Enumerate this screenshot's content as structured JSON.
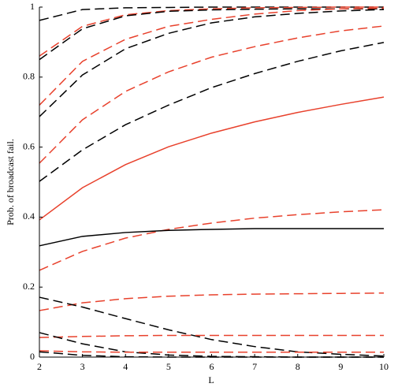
{
  "chart_data": {
    "type": "line",
    "x_label": "L",
    "y_label": "Prob. of broadcast fail.",
    "x": [
      2,
      3,
      4,
      5,
      6,
      7,
      8,
      9,
      10
    ],
    "xlim": [
      2,
      10
    ],
    "xticks": [
      2,
      3,
      4,
      5,
      6,
      7,
      8,
      9,
      10
    ],
    "ylim": [
      0,
      1
    ],
    "yticks": [
      0,
      0.2,
      0.4,
      0.6,
      0.8,
      1
    ],
    "series": [
      {
        "color": "#000000",
        "dashed": true,
        "values": [
          0.962,
          0.993,
          0.998,
          0.999,
          1,
          1,
          1,
          1,
          1
        ]
      },
      {
        "color": "#e8412c",
        "dashed": true,
        "values": [
          0.86,
          0.945,
          0.978,
          0.99,
          0.995,
          0.998,
          0.999,
          1,
          1
        ]
      },
      {
        "color": "#000000",
        "dashed": true,
        "values": [
          0.85,
          0.938,
          0.975,
          0.988,
          0.992,
          0.994,
          0.995,
          0.995,
          0.995
        ]
      },
      {
        "color": "#e8412c",
        "dashed": true,
        "values": [
          0.72,
          0.845,
          0.908,
          0.945,
          0.965,
          0.98,
          0.99,
          0.995,
          0.997
        ]
      },
      {
        "color": "#000000",
        "dashed": true,
        "values": [
          0.687,
          0.806,
          0.881,
          0.925,
          0.955,
          0.972,
          0.982,
          0.989,
          0.993
        ]
      },
      {
        "color": "#e8412c",
        "dashed": true,
        "values": [
          0.554,
          0.678,
          0.759,
          0.815,
          0.857,
          0.887,
          0.912,
          0.932,
          0.946
        ]
      },
      {
        "color": "#000000",
        "dashed": true,
        "values": [
          0.502,
          0.592,
          0.664,
          0.72,
          0.77,
          0.81,
          0.845,
          0.875,
          0.899
        ]
      },
      {
        "color": "#e8412c",
        "dashed": false,
        "values": [
          0.392,
          0.484,
          0.55,
          0.601,
          0.64,
          0.672,
          0.699,
          0.722,
          0.743
        ]
      },
      {
        "color": "#e8412c",
        "dashed": true,
        "values": [
          0.248,
          0.302,
          0.34,
          0.365,
          0.383,
          0.397,
          0.407,
          0.415,
          0.421
        ]
      },
      {
        "color": "#000000",
        "dashed": false,
        "values": [
          0.318,
          0.345,
          0.356,
          0.362,
          0.365,
          0.367,
          0.367,
          0.367,
          0.367
        ]
      },
      {
        "color": "#e8412c",
        "dashed": true,
        "values": [
          0.133,
          0.155,
          0.167,
          0.174,
          0.178,
          0.18,
          0.181,
          0.182,
          0.183
        ]
      },
      {
        "color": "#000000",
        "dashed": true,
        "values": [
          0.171,
          0.143,
          0.11,
          0.078,
          0.05,
          0.03,
          0.015,
          0.008,
          0.003
        ]
      },
      {
        "color": "#e8412c",
        "dashed": true,
        "values": [
          0.056,
          0.059,
          0.061,
          0.062,
          0.062,
          0.062,
          0.062,
          0.062,
          0.062
        ]
      },
      {
        "color": "#000000",
        "dashed": true,
        "values": [
          0.07,
          0.038,
          0.015,
          0.006,
          0.002,
          0.001,
          0,
          0,
          0
        ]
      },
      {
        "color": "#e8412c",
        "dashed": true,
        "values": [
          0.018,
          0.015,
          0.014,
          0.014,
          0.014,
          0.014,
          0.014,
          0.014,
          0.014
        ]
      },
      {
        "color": "#000000",
        "dashed": true,
        "values": [
          0.015,
          0.005,
          0.001,
          0,
          0,
          0,
          0,
          0,
          0
        ]
      }
    ]
  }
}
